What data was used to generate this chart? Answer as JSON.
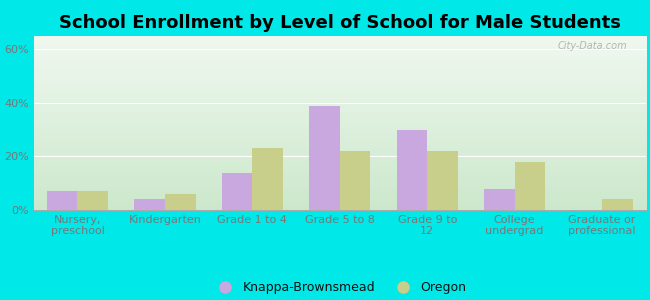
{
  "title": "School Enrollment by Level of School for Male Students",
  "categories": [
    "Nursery,\npreschool",
    "Kindergarten",
    "Grade 1 to 4",
    "Grade 5 to 8",
    "Grade 9 to\n12",
    "College\nundergrad",
    "Graduate or\nprofessional"
  ],
  "knappa_values": [
    7,
    4,
    14,
    39,
    30,
    8,
    0
  ],
  "oregon_values": [
    7,
    6,
    23,
    22,
    22,
    18,
    4
  ],
  "knappa_color": "#c9a8e0",
  "oregon_color": "#c8cf8a",
  "bar_width": 0.35,
  "ylim": [
    0,
    65
  ],
  "yticks": [
    0,
    20,
    40,
    60
  ],
  "ytick_labels": [
    "0%",
    "20%",
    "40%",
    "60%"
  ],
  "legend_labels": [
    "Knappa-Brownsmead",
    "Oregon"
  ],
  "bg_color": "#00e8e8",
  "plot_bg_topleft": "#d8ece0",
  "plot_bg_topright": "#edf5f0",
  "plot_bg_bottom": "#daecd8",
  "title_fontsize": 13,
  "axis_fontsize": 8,
  "legend_fontsize": 9,
  "tick_color": "#777777",
  "grid_color": "#cccccc"
}
